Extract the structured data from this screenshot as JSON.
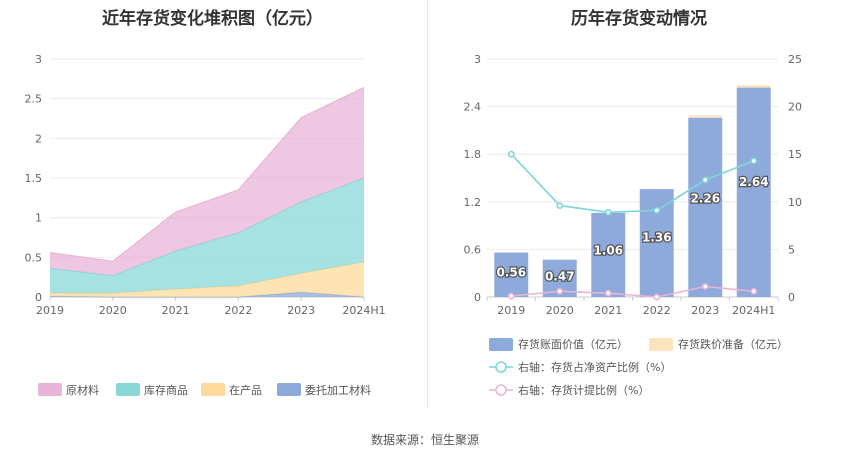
{
  "left_title": "近年存货变化堆积图（亿元）",
  "right_title": "历年存货变动情况",
  "source": "数据来源：恒生聚源",
  "chart_data": [
    {
      "type": "area",
      "stacked": true,
      "title": "近年存货变化堆积图（亿元）",
      "categories": [
        "2019",
        "2020",
        "2021",
        "2022",
        "2023",
        "2024H1"
      ],
      "ylim": [
        0,
        3
      ],
      "yticks": [
        "0",
        "0.5",
        "1",
        "1.5",
        "2",
        "2.5",
        "3"
      ],
      "grid": true,
      "legend_position": "bottom",
      "series": [
        {
          "name": "委托加工材料",
          "color": "#8eaadb",
          "values": [
            0.01,
            0.0,
            0.0,
            0.0,
            0.06,
            0.0
          ]
        },
        {
          "name": "在产品",
          "color": "#fdd99b",
          "values": [
            0.04,
            0.05,
            0.1,
            0.14,
            0.24,
            0.44
          ]
        },
        {
          "name": "库存商品",
          "color": "#88d8d8",
          "values": [
            0.31,
            0.22,
            0.48,
            0.67,
            0.9,
            1.06
          ]
        },
        {
          "name": "原材料",
          "color": "#e8b4d8",
          "values": [
            0.2,
            0.18,
            0.49,
            0.54,
            1.06,
            1.14
          ]
        }
      ]
    },
    {
      "type": "bar",
      "title": "历年存货变动情况",
      "categories": [
        "2019",
        "2020",
        "2021",
        "2022",
        "2023",
        "2024H1"
      ],
      "ylim": [
        0,
        3
      ],
      "yticks": [
        "0",
        "0.6",
        "1.2",
        "1.8",
        "2.4",
        "3"
      ],
      "y2lim": [
        0,
        25
      ],
      "y2ticks": [
        "0",
        "5",
        "10",
        "15",
        "20",
        "25"
      ],
      "grid": true,
      "legend_position": "bottom",
      "bar_series": [
        {
          "name": "存货账面价值（亿元）",
          "color": "#8eaadb",
          "values": [
            0.56,
            0.47,
            1.06,
            1.36,
            2.26,
            2.64
          ],
          "labels": [
            "0.56",
            "0.47",
            "1.06",
            "1.36",
            "2.26",
            "2.64"
          ]
        },
        {
          "name": "存货跌价准备（亿元）",
          "color": "#fde4bf",
          "values": [
            0.0,
            0.0,
            0.0,
            0.0,
            0.03,
            0.03
          ]
        }
      ],
      "line_series": [
        {
          "name": "右轴：存货占净资产比例（%）",
          "color": "#7ed6d6",
          "axis": "right",
          "values": [
            15.0,
            9.6,
            8.9,
            9.1,
            12.3,
            14.3
          ]
        },
        {
          "name": "右轴：存货计提比例（%）",
          "color": "#e8b4d8",
          "axis": "right",
          "values": [
            0.1,
            0.6,
            0.4,
            0.0,
            1.1,
            0.6
          ]
        }
      ]
    }
  ]
}
